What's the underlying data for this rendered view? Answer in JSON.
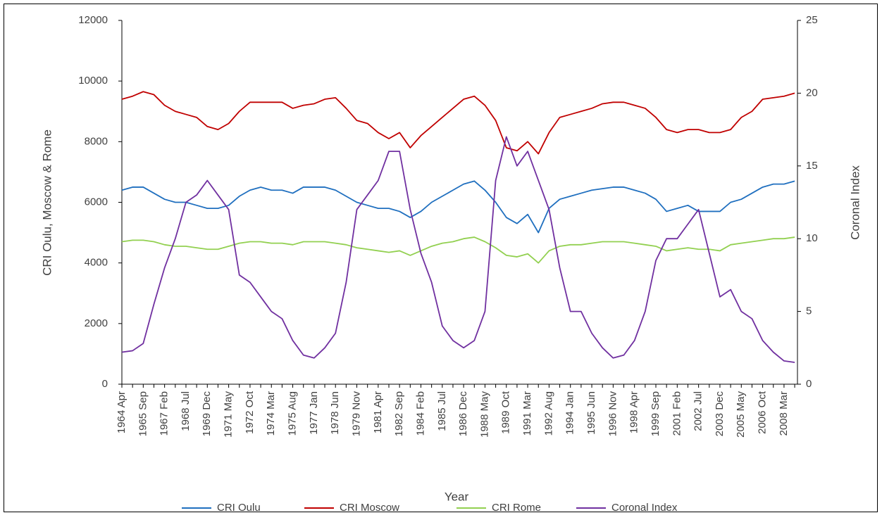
{
  "chart_data": {
    "type": "line",
    "x_label": "Year",
    "y_label": "CRI Oulu, Moscow & Rome",
    "y2_label": "Coronal Index",
    "categories": [
      "1964 Apr",
      null,
      "1965 Sep",
      null,
      "1967 Feb",
      null,
      "1968 Jul",
      null,
      "1969 Dec",
      null,
      "1971 May",
      null,
      "1972 Oct",
      null,
      "1974 Mar",
      null,
      "1975 Aug",
      null,
      "1977 Jan",
      null,
      "1978 Jun",
      null,
      "1979 Nov",
      null,
      "1981 Apr",
      null,
      "1982 Sep",
      null,
      "1984 Feb",
      null,
      "1985 Jul",
      null,
      "1986 Dec",
      null,
      "1988 May",
      null,
      "1989 Oct",
      null,
      "1991 Mar",
      null,
      "1992 Aug",
      null,
      "1994 Jan",
      null,
      "1995 Jun",
      null,
      "1996 Nov",
      null,
      "1998 Apr",
      null,
      "1999 Sep",
      null,
      "2001 Feb",
      null,
      "2002 Jul",
      null,
      "2003 Dec",
      null,
      "2005 May",
      null,
      "2006 Oct",
      null,
      "2008 Mar",
      null
    ],
    "series": [
      {
        "name": "CRI Oulu",
        "color": "#1f6fbf",
        "values": [
          6400,
          6500,
          6500,
          6300,
          6100,
          6000,
          6000,
          5900,
          5800,
          5800,
          5900,
          6200,
          6400,
          6500,
          6400,
          6400,
          6300,
          6500,
          6500,
          6500,
          6400,
          6200,
          6000,
          5900,
          5800,
          5800,
          5700,
          5500,
          5700,
          6000,
          6200,
          6400,
          6600,
          6700,
          6400,
          6000,
          5500,
          5300,
          5600,
          5000,
          5800,
          6100,
          6200,
          6300,
          6400,
          6450,
          6500,
          6500,
          6400,
          6300,
          6100,
          5700,
          5800,
          5900,
          5700,
          5700,
          5700,
          6000,
          6100,
          6300,
          6500,
          6600,
          6600,
          6700
        ]
      },
      {
        "name": "CRI Moscow",
        "color": "#c00000",
        "values": [
          9400,
          9500,
          9650,
          9550,
          9200,
          9000,
          8900,
          8800,
          8500,
          8400,
          8600,
          9000,
          9300,
          9300,
          9300,
          9300,
          9100,
          9200,
          9250,
          9400,
          9450,
          9100,
          8700,
          8600,
          8300,
          8100,
          8300,
          7800,
          8200,
          8500,
          8800,
          9100,
          9400,
          9500,
          9200,
          8700,
          7800,
          7700,
          8000,
          7600,
          8300,
          8800,
          8900,
          9000,
          9100,
          9250,
          9300,
          9300,
          9200,
          9100,
          8800,
          8400,
          8300,
          8400,
          8400,
          8300,
          8300,
          8400,
          8800,
          9000,
          9400,
          9450,
          9500,
          9600
        ]
      },
      {
        "name": "CRI Rome",
        "color": "#92d050",
        "values": [
          4700,
          4750,
          4750,
          4700,
          4600,
          4550,
          4550,
          4500,
          4450,
          4450,
          4550,
          4650,
          4700,
          4700,
          4650,
          4650,
          4600,
          4700,
          4700,
          4700,
          4650,
          4600,
          4500,
          4450,
          4400,
          4350,
          4400,
          4250,
          4400,
          4550,
          4650,
          4700,
          4800,
          4850,
          4700,
          4500,
          4250,
          4200,
          4300,
          4000,
          4400,
          4550,
          4600,
          4600,
          4650,
          4700,
          4700,
          4700,
          4650,
          4600,
          4550,
          4400,
          4450,
          4500,
          4450,
          4450,
          4400,
          4600,
          4650,
          4700,
          4750,
          4800,
          4800,
          4850
        ]
      },
      {
        "name": "Coronal Index",
        "color": "#7030a0",
        "axis": "y2",
        "values": [
          2.2,
          2.3,
          2.8,
          5.5,
          8,
          10,
          12.5,
          13,
          14,
          13,
          12,
          7.5,
          7,
          6,
          5,
          4.5,
          3,
          2,
          1.8,
          2.5,
          3.5,
          7,
          12,
          13,
          14,
          16,
          16,
          12,
          9,
          7,
          4,
          3,
          2.5,
          3,
          5,
          14,
          17,
          15,
          16,
          14,
          12,
          8,
          5,
          5,
          3.5,
          2.5,
          1.8,
          2,
          3,
          5,
          8.5,
          10,
          10,
          11,
          12,
          9,
          6,
          6.5,
          5,
          4.5,
          3,
          2.2,
          1.6,
          1.5
        ]
      }
    ],
    "ylim": [
      0,
      12000
    ],
    "yticks": [
      0,
      2000,
      4000,
      6000,
      8000,
      10000,
      12000
    ],
    "y2lim": [
      0,
      25
    ],
    "y2ticks": [
      0,
      5,
      10,
      15,
      20,
      25
    ],
    "grid": false,
    "legend": "bottom"
  }
}
